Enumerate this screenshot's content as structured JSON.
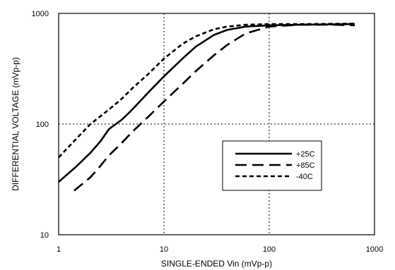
{
  "chart_data": {
    "type": "line",
    "xlabel": "SINGLE-ENDED Vin (mVp-p)",
    "ylabel": "DIFFERENTIAL VOLTAGE (mVp-p)",
    "x_scale": "log",
    "y_scale": "log",
    "xlim": [
      1,
      1000
    ],
    "ylim": [
      10,
      1000
    ],
    "x_ticks": [
      "1",
      "10",
      "100",
      "1000"
    ],
    "y_ticks": [
      "10",
      "100",
      "1000"
    ],
    "grid": "dotted, at decades",
    "legend_position": "center-right",
    "series": [
      {
        "name": "+25C",
        "line_style": "solid",
        "points": [
          [
            1,
            30
          ],
          [
            1.5,
            42
          ],
          [
            2,
            55
          ],
          [
            2.5,
            70
          ],
          [
            3,
            90
          ],
          [
            4,
            110
          ],
          [
            5,
            135
          ],
          [
            7,
            190
          ],
          [
            10,
            270
          ],
          [
            15,
            390
          ],
          [
            20,
            500
          ],
          [
            30,
            640
          ],
          [
            40,
            710
          ],
          [
            60,
            760
          ],
          [
            100,
            780
          ],
          [
            200,
            790
          ],
          [
            400,
            795
          ],
          [
            650,
            800
          ]
        ]
      },
      {
        "name": "+85C",
        "line_style": "long-dash",
        "points": [
          [
            1.4,
            25
          ],
          [
            2,
            33
          ],
          [
            2.5,
            42
          ],
          [
            3,
            52
          ],
          [
            4,
            68
          ],
          [
            5,
            85
          ],
          [
            7,
            115
          ],
          [
            10,
            160
          ],
          [
            15,
            230
          ],
          [
            20,
            300
          ],
          [
            30,
            420
          ],
          [
            40,
            520
          ],
          [
            60,
            660
          ],
          [
            100,
            760
          ],
          [
            200,
            790
          ],
          [
            400,
            790
          ],
          [
            650,
            780
          ]
        ]
      },
      {
        "name": "-40C",
        "line_style": "short-dash",
        "points": [
          [
            1,
            50
          ],
          [
            1.5,
            75
          ],
          [
            2,
            100
          ],
          [
            3,
            135
          ],
          [
            4,
            170
          ],
          [
            5,
            210
          ],
          [
            7,
            280
          ],
          [
            10,
            390
          ],
          [
            15,
            530
          ],
          [
            20,
            620
          ],
          [
            30,
            720
          ],
          [
            40,
            760
          ],
          [
            60,
            790
          ],
          [
            100,
            800
          ],
          [
            200,
            800
          ],
          [
            400,
            805
          ],
          [
            650,
            810
          ]
        ]
      }
    ]
  }
}
